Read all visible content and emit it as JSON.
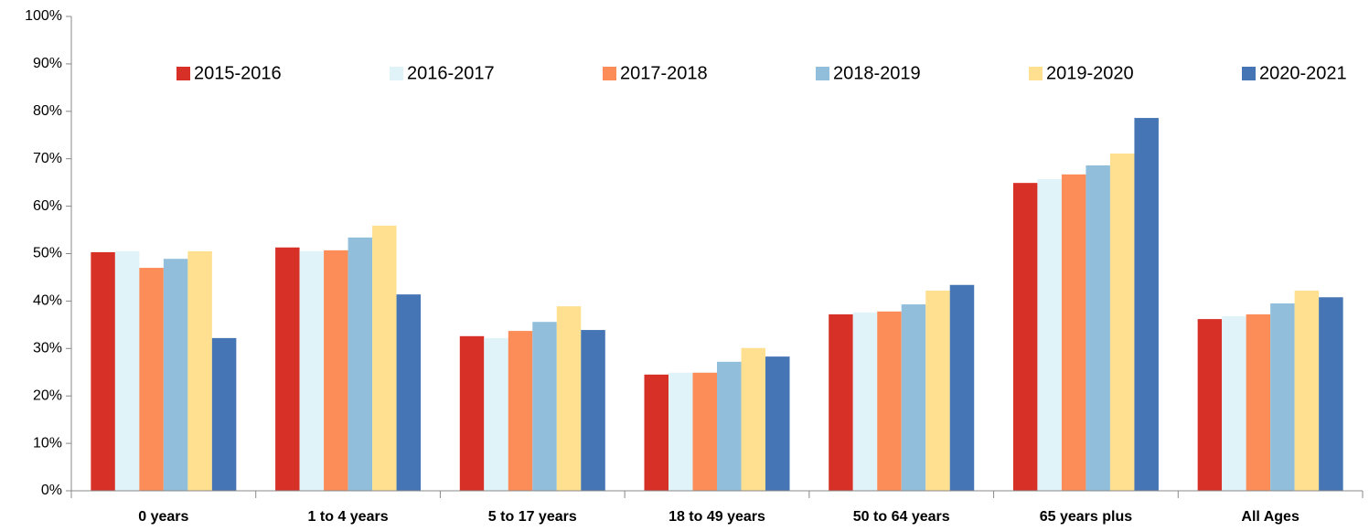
{
  "chart_data": {
    "type": "bar",
    "categories": [
      "0 years",
      "1 to 4 years",
      "5 to 17 years",
      "18 to 49 years",
      "50 to 64 years",
      "65 years plus",
      "All Ages"
    ],
    "series": [
      {
        "name": "2015-2016",
        "color": "#d73027",
        "values": [
          50.3,
          51.3,
          32.6,
          24.5,
          37.2,
          64.9,
          36.2
        ]
      },
      {
        "name": "2016-2017",
        "color": "#e0f3f8",
        "values": [
          50.5,
          50.5,
          32.2,
          24.9,
          37.6,
          65.7,
          36.8
        ]
      },
      {
        "name": "2017-2018",
        "color": "#fc8d59",
        "values": [
          47.0,
          50.7,
          33.7,
          24.9,
          37.8,
          66.7,
          37.2
        ]
      },
      {
        "name": "2018-2019",
        "color": "#91bfdb",
        "values": [
          48.9,
          53.4,
          35.6,
          27.2,
          39.3,
          68.6,
          39.5
        ]
      },
      {
        "name": "2019-2020",
        "color": "#fee090",
        "values": [
          50.5,
          55.9,
          38.9,
          30.1,
          42.2,
          71.1,
          42.2
        ]
      },
      {
        "name": "2020-2021",
        "color": "#4575b4",
        "values": [
          32.2,
          41.4,
          33.9,
          28.3,
          43.4,
          78.6,
          40.8
        ]
      }
    ],
    "ylim": [
      0,
      100
    ],
    "yticks": [
      {
        "value": 0,
        "label": "0%"
      },
      {
        "value": 10,
        "label": "10%"
      },
      {
        "value": 20,
        "label": "20%"
      },
      {
        "value": 30,
        "label": "30%"
      },
      {
        "value": 40,
        "label": "40%"
      },
      {
        "value": 50,
        "label": "50%"
      },
      {
        "value": 60,
        "label": "60%"
      },
      {
        "value": 70,
        "label": "70%"
      },
      {
        "value": 80,
        "label": "80%"
      },
      {
        "value": 90,
        "label": "90%"
      },
      {
        "value": 100,
        "label": "100%"
      }
    ],
    "legend": "top",
    "grid": false
  }
}
